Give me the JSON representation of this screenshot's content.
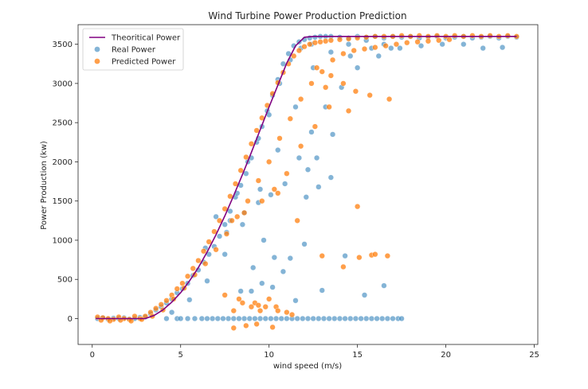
{
  "chart_data": {
    "type": "scatter",
    "title": "Wind Turbine Power Production Prediction",
    "xlabel": "wind speed (m/s)",
    "ylabel": "Power Production (kw)",
    "xlim": [
      -0.8,
      25.2
    ],
    "ylim": [
      -330,
      3750
    ],
    "xticks": [
      0,
      5,
      10,
      15,
      20,
      25
    ],
    "yticks": [
      0,
      500,
      1000,
      1500,
      2000,
      2500,
      3000,
      3500
    ],
    "grid": false,
    "legend": {
      "position": "top-left",
      "entries": [
        "Theoritical Power",
        "Real Power",
        "Predicted Power"
      ]
    },
    "colors": {
      "theoretical": "#800080",
      "real": "#1f77b4",
      "predicted": "#ff7f0e"
    },
    "series": [
      {
        "name": "Theoritical Power",
        "kind": "line",
        "x": [
          0.2,
          1,
          2,
          3,
          3.5,
          4,
          4.5,
          5,
          5.5,
          6,
          6.5,
          7,
          7.5,
          8,
          8.5,
          9,
          9.5,
          10,
          10.5,
          11,
          11.5,
          12,
          12.5,
          13,
          15,
          20,
          24
        ],
        "y": [
          0,
          0,
          0,
          0,
          40,
          110,
          210,
          330,
          480,
          650,
          850,
          1070,
          1310,
          1570,
          1840,
          2120,
          2410,
          2700,
          2980,
          3260,
          3480,
          3590,
          3600,
          3600,
          3600,
          3600,
          3600
        ]
      },
      {
        "name": "Real Power",
        "kind": "scatter",
        "x": [
          0.3,
          0.6,
          0.9,
          1.2,
          1.5,
          1.8,
          2.1,
          2.4,
          2.7,
          3.0,
          3.3,
          3.6,
          3.9,
          4.2,
          4.5,
          4.8,
          5.1,
          5.4,
          5.7,
          6.0,
          6.3,
          6.6,
          6.9,
          7.2,
          7.5,
          7.8,
          8.1,
          8.4,
          8.7,
          9.0,
          9.3,
          9.6,
          9.9,
          10.2,
          10.5,
          10.8,
          11.1,
          11.4,
          11.7,
          12.0,
          12.3,
          12.6,
          12.9,
          13.2,
          13.5,
          14.0,
          14.5,
          15.0,
          15.5,
          16.0,
          16.5,
          17.0,
          17.5,
          18.0,
          18.5,
          19.0,
          19.5,
          20.0,
          20.5,
          21.0,
          21.5,
          22.0,
          22.5,
          23.0,
          23.5,
          24.0,
          4.2,
          4.8,
          5.0,
          5.4,
          5.8,
          6.2,
          6.5,
          6.8,
          7.1,
          7.4,
          7.7,
          8.0,
          8.3,
          8.6,
          8.9,
          9.2,
          9.5,
          9.8,
          10.1,
          10.4,
          10.7,
          11.0,
          11.3,
          11.6,
          11.9,
          12.2,
          12.5,
          12.8,
          13.1,
          13.4,
          13.7,
          14.0,
          14.3,
          14.6,
          14.9,
          15.2,
          15.5,
          15.8,
          16.1,
          16.4,
          16.7,
          17.0,
          17.3,
          4.5,
          5.5,
          6.5,
          7.5,
          8.5,
          9.5,
          10.5,
          11.5,
          12.5,
          13.5,
          14.5,
          15.5,
          16.5,
          6.4,
          7.0,
          7.6,
          8.2,
          8.8,
          9.4,
          10.0,
          10.6,
          11.2,
          11.8,
          12.4,
          9.0,
          9.6,
          10.2,
          10.8,
          11.2,
          12.0,
          13.0,
          14.3,
          15.4,
          16.5,
          17.5,
          8.4,
          9.1,
          9.7,
          10.3,
          12.2,
          12.7,
          13.6,
          14.6,
          15.8,
          16.9,
          11.5,
          12.1,
          12.8,
          13.5,
          7.8,
          8.6,
          9.4,
          10.1,
          10.9,
          11.7,
          12.4,
          13.2,
          14.1,
          15.0,
          16.2,
          17.4,
          18.6,
          19.8,
          21.0,
          22.1,
          23.2
        ],
        "y": [
          0,
          10,
          -10,
          5,
          0,
          10,
          -5,
          0,
          15,
          20,
          60,
          110,
          150,
          200,
          250,
          330,
          380,
          450,
          550,
          620,
          720,
          820,
          920,
          1050,
          1200,
          1370,
          1550,
          1700,
          1850,
          2050,
          2250,
          2450,
          2650,
          2850,
          3050,
          3250,
          3380,
          3480,
          3530,
          3560,
          3580,
          3590,
          3600,
          3600,
          3600,
          3590,
          3580,
          3600,
          3590,
          3600,
          3580,
          3600,
          3590,
          3600,
          3580,
          3590,
          3600,
          3580,
          3590,
          3600,
          3580,
          3590,
          3600,
          3580,
          3600,
          3590,
          0,
          0,
          0,
          0,
          0,
          0,
          0,
          0,
          0,
          0,
          0,
          0,
          0,
          0,
          0,
          0,
          0,
          0,
          0,
          0,
          0,
          0,
          0,
          0,
          0,
          0,
          0,
          0,
          0,
          0,
          0,
          0,
          0,
          0,
          0,
          0,
          0,
          0,
          0,
          0,
          0,
          0,
          0,
          80,
          240,
          480,
          820,
          1200,
          1650,
          2150,
          2700,
          3200,
          3400,
          3500,
          3550,
          3500,
          900,
          1300,
          1100,
          1600,
          2000,
          2300,
          2600,
          3000,
          3300,
          3450,
          3500,
          350,
          450,
          400,
          600,
          770,
          950,
          360,
          800,
          300,
          420,
          0,
          350,
          650,
          1000,
          780,
          1900,
          2050,
          2350,
          3350,
          3450,
          3450,
          230,
          1550,
          1680,
          1800,
          1250,
          1350,
          1480,
          1580,
          1720,
          2050,
          2380,
          2700,
          2950,
          3200,
          3350,
          3450,
          3480,
          3500,
          3500,
          3450,
          3460
        ],
        "note": ""
      },
      {
        "name": "Predicted Power",
        "kind": "scatter",
        "x": [
          0.3,
          0.6,
          0.9,
          1.2,
          1.5,
          1.8,
          2.1,
          2.4,
          2.7,
          3.0,
          3.3,
          3.6,
          3.9,
          4.2,
          4.5,
          4.8,
          5.1,
          5.4,
          5.7,
          6.0,
          6.3,
          6.6,
          6.9,
          7.2,
          7.5,
          7.8,
          8.1,
          8.4,
          8.7,
          9.0,
          9.3,
          9.6,
          9.9,
          10.2,
          10.5,
          10.8,
          11.1,
          11.4,
          11.7,
          12.0,
          12.3,
          12.6,
          12.9,
          13.2,
          13.5,
          14.0,
          14.5,
          15.0,
          15.5,
          16.0,
          16.5,
          17.0,
          17.5,
          18.0,
          18.5,
          19.0,
          19.5,
          20.0,
          20.5,
          21.0,
          21.5,
          22.0,
          22.5,
          23.0,
          23.5,
          24.0,
          0.5,
          1.0,
          1.6,
          2.2,
          2.8,
          3.4,
          4.0,
          4.6,
          5.2,
          5.8,
          6.4,
          7.0,
          7.6,
          8.2,
          8.8,
          9.4,
          10.0,
          10.6,
          11.2,
          11.8,
          12.4,
          13.0,
          13.6,
          14.2,
          14.8,
          15.4,
          16.0,
          16.6,
          17.2,
          17.8,
          18.4,
          19.0,
          19.6,
          20.2,
          8.0,
          8.5,
          9.0,
          9.5,
          10.0,
          10.4,
          7.5,
          8.3,
          9.2,
          9.8,
          10.5,
          11.0,
          11.3,
          13.2,
          14.5,
          15.7,
          16.8,
          12.7,
          13.5,
          14.2,
          14.9,
          7.9,
          8.6,
          9.6,
          10.3,
          11.0,
          11.8,
          12.6,
          13.4,
          15.0,
          15.8,
          16.7,
          13.0,
          14.2,
          15.1,
          16.0,
          9.4,
          10.5,
          11.6,
          8.0,
          8.7,
          9.3,
          10.2
        ],
        "y": [
          20,
          10,
          0,
          -10,
          20,
          0,
          -10,
          30,
          0,
          30,
          80,
          130,
          180,
          230,
          300,
          380,
          450,
          540,
          640,
          740,
          860,
          980,
          1110,
          1250,
          1400,
          1560,
          1720,
          1890,
          2060,
          2230,
          2400,
          2560,
          2720,
          2870,
          3010,
          3140,
          3250,
          3350,
          3420,
          3470,
          3500,
          3520,
          3530,
          3540,
          3550,
          3560,
          3570,
          3580,
          3590,
          3600,
          3600,
          3600,
          3610,
          3600,
          3610,
          3600,
          3610,
          3600,
          3610,
          3600,
          3610,
          3600,
          3610,
          3600,
          3610,
          3600,
          -20,
          -30,
          -20,
          -30,
          -10,
          30,
          110,
          250,
          390,
          560,
          700,
          880,
          1080,
          1300,
          1500,
          1760,
          2000,
          2300,
          2550,
          2800,
          3000,
          3150,
          3300,
          3380,
          3420,
          3440,
          3460,
          3480,
          3500,
          3520,
          3530,
          3540,
          3550,
          3560,
          100,
          200,
          150,
          100,
          250,
          150,
          300,
          250,
          200,
          150,
          100,
          80,
          50,
          2950,
          2650,
          2850,
          2800,
          3200,
          3100,
          3000,
          2900,
          1250,
          1350,
          1500,
          1650,
          1850,
          2200,
          2450,
          2700,
          1430,
          810,
          800,
          800,
          660,
          780,
          820,
          170,
          1600,
          1250,
          -120,
          -90,
          -70,
          -110
        ],
        "note": ""
      }
    ]
  }
}
